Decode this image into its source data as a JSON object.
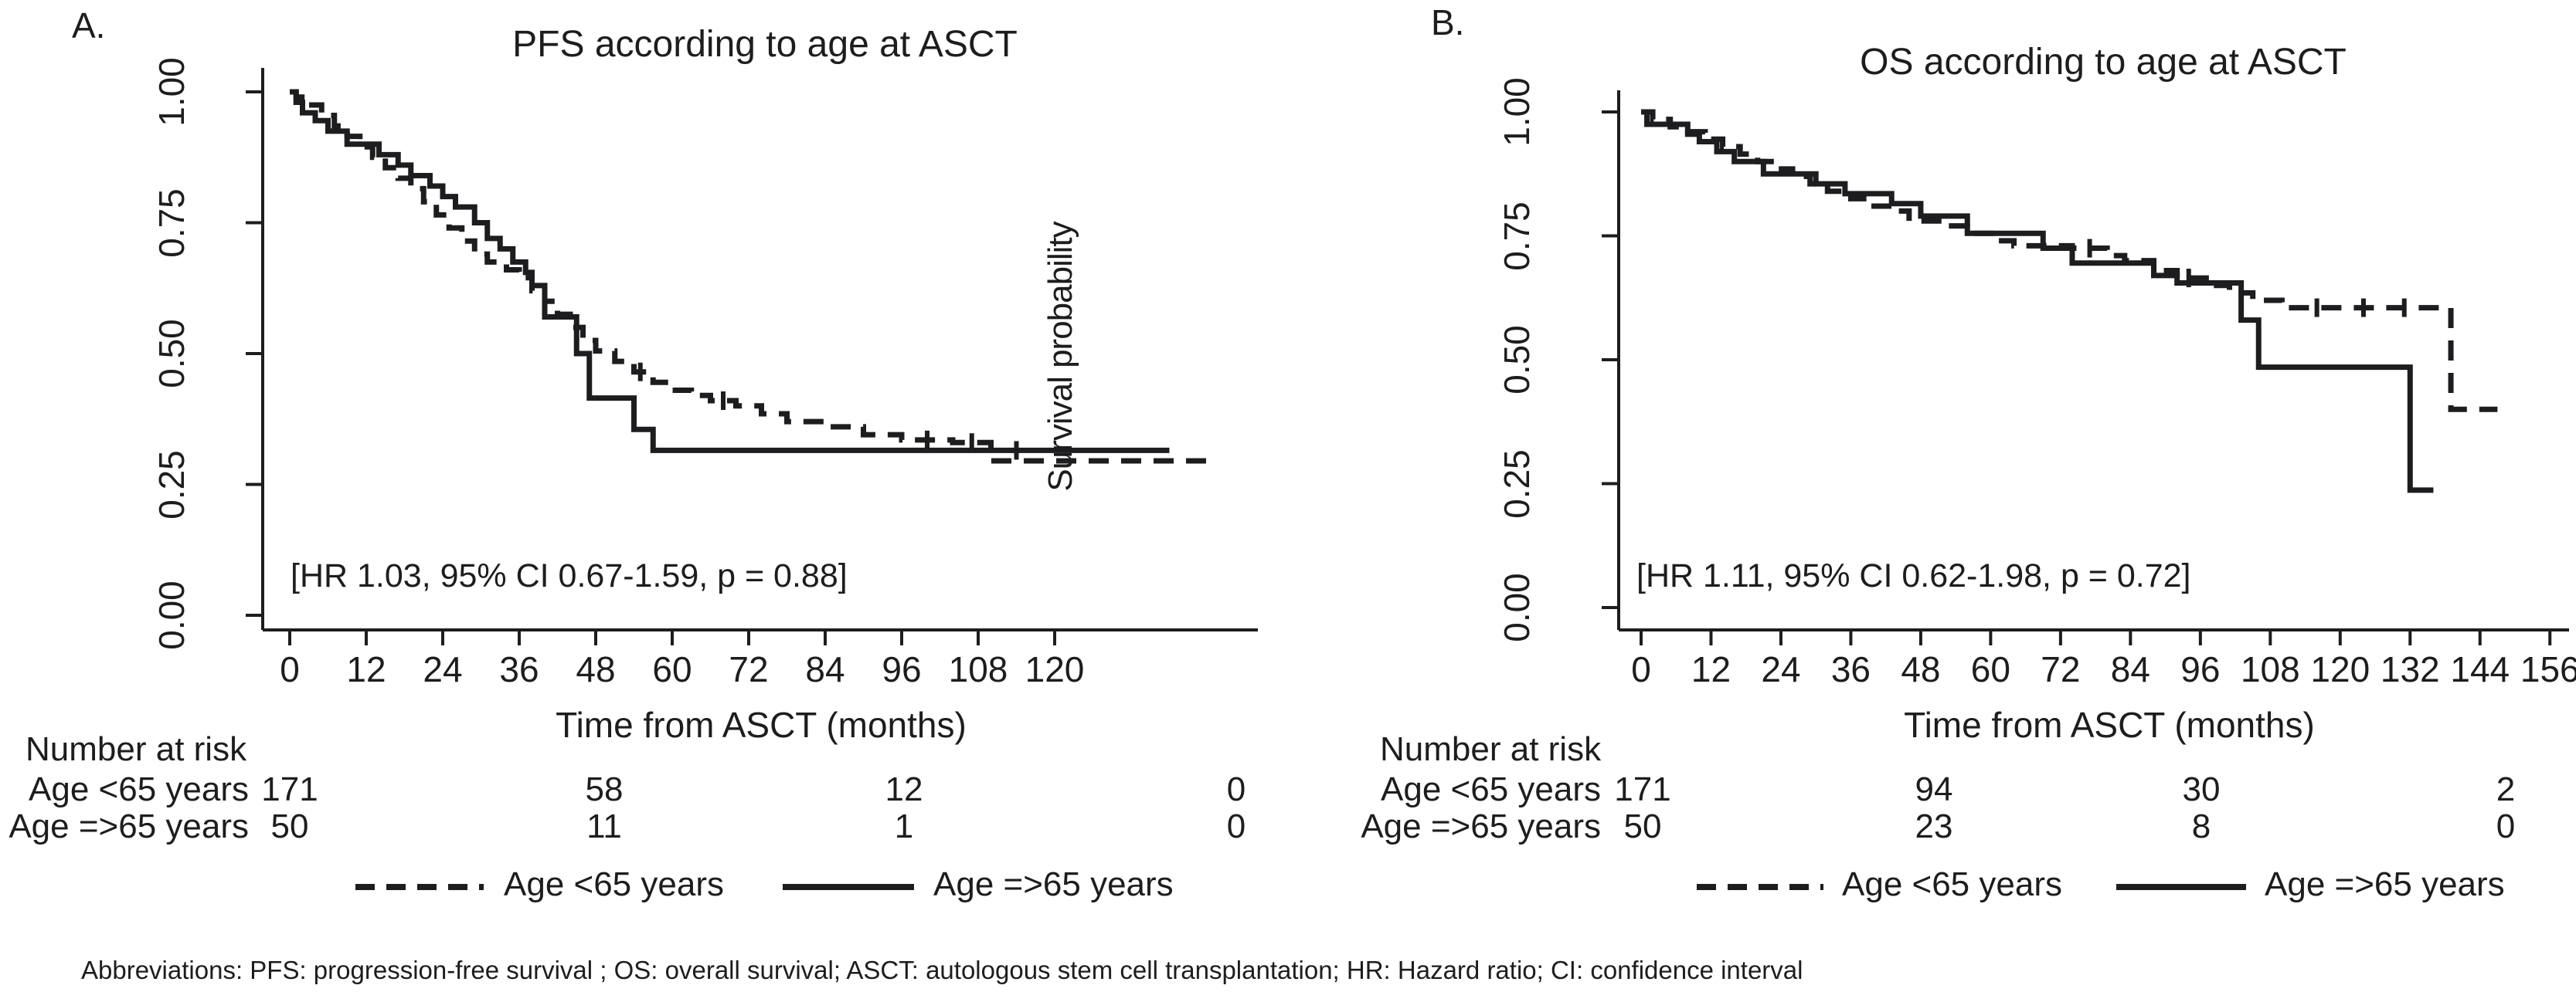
{
  "figure": {
    "footnote": "Abbreviations: PFS: progression-free survival ; OS: overall survival; ASCT: autologous stem cell transplantation; HR: Hazard ratio; CI: confidence interval",
    "colors": {
      "ink": "#1d1d1f",
      "background": "#ffffff"
    }
  },
  "panels": [
    {
      "panel_label": "A.",
      "title": "PFS according to age at ASCT",
      "y_axis_label": "Survival probability",
      "x_axis_label": "Time from ASCT (months)",
      "annotation": "[HR 1.03, 95% CI 0.67-1.59, p = 0.88]",
      "y_ticks": [
        "1.00",
        "0.75",
        "0.50",
        "0.25",
        "0.00"
      ],
      "x_ticks": [
        0,
        12,
        24,
        36,
        48,
        60,
        72,
        84,
        96,
        108,
        120
      ],
      "risk_table": {
        "header": "Number at risk",
        "time_points": [
          0,
          48,
          96,
          144
        ],
        "rows": [
          {
            "label": "Age <65 years",
            "values": [
              "171",
              "58",
              "12",
              "0"
            ]
          },
          {
            "label": "Age =>65 years",
            "values": [
              "50",
              "11",
              "1",
              "0"
            ]
          }
        ]
      },
      "legend": [
        {
          "label": "Age <65 years",
          "line_style": "dashed"
        },
        {
          "label": "Age =>65 years",
          "line_style": "solid"
        }
      ]
    },
    {
      "panel_label": "B.",
      "title": "OS according to age at ASCT",
      "x_axis_label": "Time from ASCT (months)",
      "annotation": "[HR 1.11, 95% CI 0.62-1.98, p = 0.72]",
      "y_ticks": [
        "1.00",
        "0.75",
        "0.50",
        "0.25",
        "0.00"
      ],
      "x_ticks": [
        0,
        12,
        24,
        36,
        48,
        60,
        72,
        84,
        96,
        108,
        120,
        132,
        144,
        156
      ],
      "risk_table": {
        "header": "Number at risk",
        "time_points": [
          0,
          48,
          96,
          144
        ],
        "rows": [
          {
            "label": "Age <65 years",
            "values": [
              "171",
              "94",
              "30",
              "2"
            ]
          },
          {
            "label": "Age =>65 years",
            "values": [
              "50",
              "23",
              "8",
              "0"
            ]
          }
        ]
      },
      "legend": [
        {
          "label": "Age <65 years",
          "line_style": "dashed"
        },
        {
          "label": "Age =>65 years",
          "line_style": "solid"
        }
      ]
    }
  ],
  "chart_data": [
    {
      "type": "line",
      "subtype": "kaplan-meier-step",
      "title": "PFS according to age at ASCT",
      "xlabel": "Time from ASCT (months)",
      "ylabel": "Survival probability",
      "xlim": [
        0,
        152
      ],
      "ylim": [
        0,
        1
      ],
      "x_tick_step": 12,
      "grid": false,
      "legend_position": "bottom",
      "annotation": "[HR 1.03, 95% CI 0.67-1.59, p = 0.88]",
      "series": [
        {
          "name": "Age <65 years",
          "style": "dashed",
          "points": [
            [
              0,
              1.0
            ],
            [
              1,
              0.99
            ],
            [
              3,
              0.975
            ],
            [
              5,
              0.955
            ],
            [
              7,
              0.935
            ],
            [
              9,
              0.915
            ],
            [
              11,
              0.895
            ],
            [
              13,
              0.875
            ],
            [
              15,
              0.855
            ],
            [
              17,
              0.835
            ],
            [
              19,
              0.815
            ],
            [
              21,
              0.79
            ],
            [
              23,
              0.765
            ],
            [
              25,
              0.74
            ],
            [
              27,
              0.715
            ],
            [
              29,
              0.69
            ],
            [
              31,
              0.675
            ],
            [
              34,
              0.66
            ],
            [
              36,
              0.645
            ],
            [
              38,
              0.62
            ],
            [
              40,
              0.6
            ],
            [
              42,
              0.575
            ],
            [
              44,
              0.55
            ],
            [
              46,
              0.525
            ],
            [
              48,
              0.505
            ],
            [
              51,
              0.485
            ],
            [
              54,
              0.465
            ],
            [
              57,
              0.445
            ],
            [
              60,
              0.43
            ],
            [
              63,
              0.42
            ],
            [
              66,
              0.41
            ],
            [
              70,
              0.4
            ],
            [
              74,
              0.385
            ],
            [
              78,
              0.37
            ],
            [
              84,
              0.36
            ],
            [
              90,
              0.345
            ],
            [
              96,
              0.335
            ],
            [
              104,
              0.33
            ],
            [
              110,
              0.295
            ],
            [
              144,
              0.295
            ]
          ],
          "censor_marks": [
            [
              55,
              0.465
            ],
            [
              68,
              0.41
            ],
            [
              100,
              0.335
            ],
            [
              107,
              0.33
            ]
          ]
        },
        {
          "name": "Age =>65 years",
          "style": "solid",
          "points": [
            [
              0,
              1.0
            ],
            [
              1,
              0.98
            ],
            [
              2,
              0.96
            ],
            [
              4,
              0.945
            ],
            [
              6,
              0.925
            ],
            [
              9,
              0.9
            ],
            [
              14,
              0.88
            ],
            [
              17,
              0.86
            ],
            [
              19,
              0.84
            ],
            [
              22,
              0.82
            ],
            [
              24,
              0.8
            ],
            [
              26,
              0.78
            ],
            [
              29,
              0.75
            ],
            [
              31,
              0.72
            ],
            [
              33,
              0.7
            ],
            [
              35,
              0.675
            ],
            [
              37,
              0.655
            ],
            [
              38,
              0.63
            ],
            [
              40,
              0.57
            ],
            [
              45,
              0.5
            ],
            [
              47,
              0.415
            ],
            [
              54,
              0.355
            ],
            [
              57,
              0.315
            ],
            [
              138,
              0.315
            ]
          ],
          "censor_marks": [
            [
              114,
              0.315
            ]
          ]
        }
      ]
    },
    {
      "type": "line",
      "subtype": "kaplan-meier-step",
      "title": "OS according to age at ASCT",
      "xlabel": "Time from ASCT (months)",
      "ylabel": "",
      "xlim": [
        0,
        159
      ],
      "ylim": [
        0,
        1
      ],
      "x_tick_step": 12,
      "grid": false,
      "legend_position": "bottom",
      "annotation": "[HR 1.11, 95% CI 0.62-1.98, p = 0.72]",
      "series": [
        {
          "name": "Age <65 years",
          "style": "dashed",
          "points": [
            [
              0,
              1.0
            ],
            [
              2,
              0.985
            ],
            [
              5,
              0.97
            ],
            [
              8,
              0.96
            ],
            [
              11,
              0.945
            ],
            [
              14,
              0.93
            ],
            [
              17,
              0.915
            ],
            [
              20,
              0.9
            ],
            [
              23,
              0.885
            ],
            [
              26,
              0.87
            ],
            [
              29,
              0.855
            ],
            [
              32,
              0.84
            ],
            [
              36,
              0.825
            ],
            [
              39,
              0.81
            ],
            [
              43,
              0.8
            ],
            [
              46,
              0.78
            ],
            [
              52,
              0.77
            ],
            [
              56,
              0.755
            ],
            [
              61,
              0.74
            ],
            [
              64,
              0.73
            ],
            [
              74,
              0.725
            ],
            [
              80,
              0.71
            ],
            [
              83,
              0.7
            ],
            [
              88,
              0.68
            ],
            [
              92,
              0.665
            ],
            [
              97,
              0.65
            ],
            [
              101,
              0.635
            ],
            [
              105,
              0.62
            ],
            [
              110,
              0.605
            ],
            [
              138,
              0.605
            ],
            [
              139,
              0.4
            ],
            [
              147,
              0.4
            ]
          ],
          "censor_marks": [
            [
              77,
              0.725
            ],
            [
              94,
              0.665
            ],
            [
              116,
              0.605
            ],
            [
              124,
              0.605
            ],
            [
              131,
              0.605
            ]
          ]
        },
        {
          "name": "Age =>65 years",
          "style": "solid",
          "points": [
            [
              0,
              1.0
            ],
            [
              1,
              0.975
            ],
            [
              8,
              0.955
            ],
            [
              10,
              0.94
            ],
            [
              13,
              0.92
            ],
            [
              16,
              0.9
            ],
            [
              21,
              0.875
            ],
            [
              30,
              0.855
            ],
            [
              35,
              0.835
            ],
            [
              43,
              0.815
            ],
            [
              48,
              0.79
            ],
            [
              56,
              0.755
            ],
            [
              69,
              0.725
            ],
            [
              74,
              0.695
            ],
            [
              88,
              0.67
            ],
            [
              92,
              0.655
            ],
            [
              103,
              0.58
            ],
            [
              106,
              0.485
            ],
            [
              132,
              0.237
            ],
            [
              136,
              0.237
            ]
          ],
          "censor_marks": []
        }
      ]
    }
  ]
}
